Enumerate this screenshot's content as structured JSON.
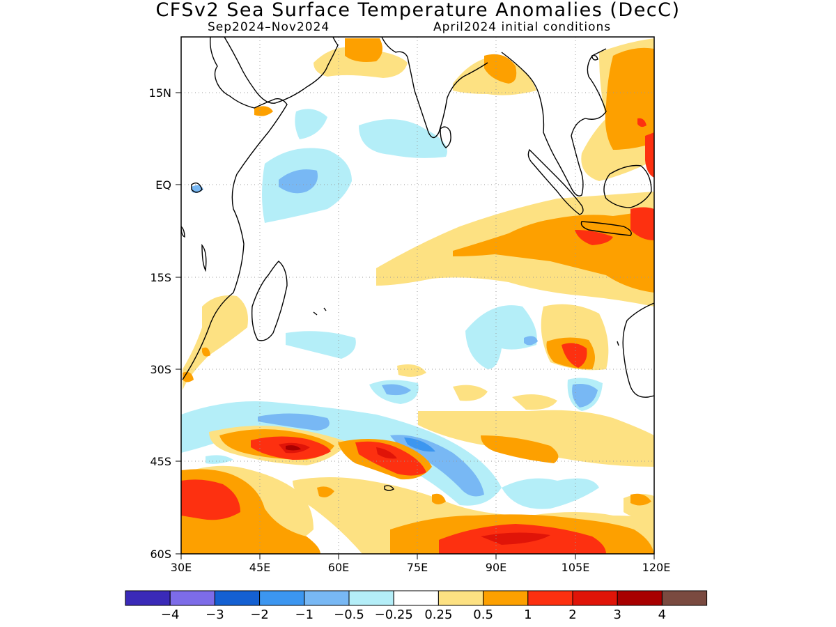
{
  "title": "CFSv2 Sea Surface Temperature Anomalies (DecC)",
  "subtitle_left": "Sep2024–Nov2024",
  "subtitle_right": "April2024 initial conditions",
  "lon_ticks": [
    "30E",
    "45E",
    "60E",
    "75E",
    "90E",
    "105E",
    "120E"
  ],
  "lat_ticks": [
    "15N",
    "EQ",
    "15S",
    "30S",
    "45S",
    "60S"
  ],
  "colorbar": {
    "colors": [
      "#3a2ab8",
      "#7d6ce8",
      "#1460d2",
      "#3c96f0",
      "#78b8f4",
      "#b4eef8",
      "#ffffff",
      "#fde182",
      "#fda000",
      "#fd3010",
      "#e01408",
      "#a80000",
      "#7a4a40"
    ],
    "labels": [
      "−4",
      "−3",
      "−2",
      "−1",
      "−0.5",
      "−0.25",
      "0.25",
      "0.5",
      "1",
      "2",
      "3",
      "4"
    ]
  },
  "map_extent": {
    "lon_min": 30,
    "lon_max": 120,
    "lat_min": -60,
    "lat_max": 24
  }
}
